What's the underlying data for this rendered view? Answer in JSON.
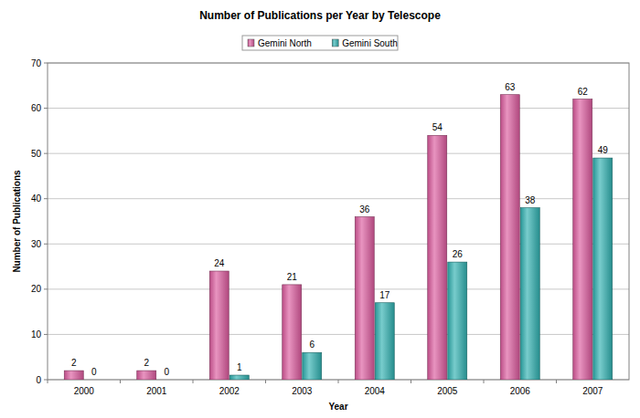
{
  "chart_data": {
    "type": "bar",
    "title": "Number of Publications per Year by Telescope",
    "x_label": "Year",
    "y_label": "Number of Publications",
    "categories": [
      "2000",
      "2001",
      "2002",
      "2003",
      "2004",
      "2005",
      "2006",
      "2007"
    ],
    "series": [
      {
        "name": "Gemini North",
        "color": "#dc5a9e",
        "values": [
          2,
          2,
          24,
          21,
          36,
          54,
          63,
          62
        ]
      },
      {
        "name": "Gemini South",
        "color": "#2fb0b0",
        "values": [
          0,
          0,
          1,
          6,
          17,
          26,
          38,
          49
        ]
      }
    ],
    "ylim": [
      0,
      70
    ],
    "yticks": [
      0,
      10,
      20,
      30,
      40,
      50,
      60,
      70
    ],
    "grid": true,
    "legend": "top",
    "data_labels": true
  }
}
